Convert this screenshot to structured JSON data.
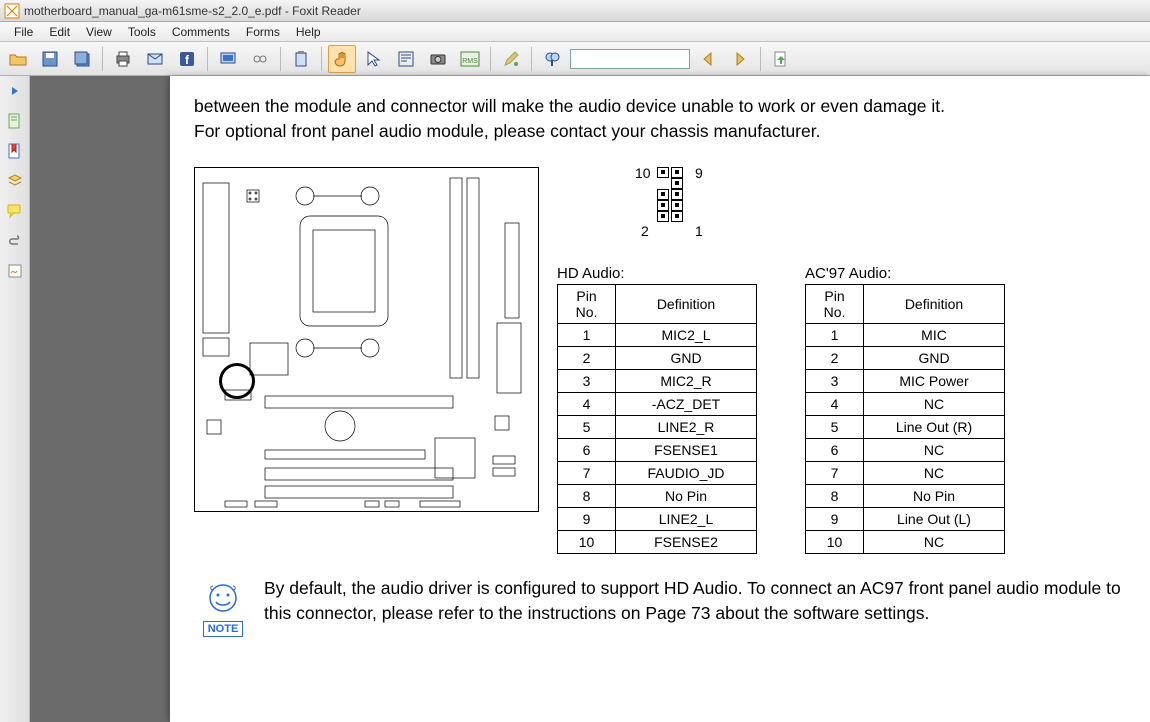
{
  "window": {
    "title": "motherboard_manual_ga-m61sme-s2_2.0_e.pdf - Foxit Reader"
  },
  "menu": {
    "items": [
      "File",
      "Edit",
      "View",
      "Tools",
      "Comments",
      "Forms",
      "Help"
    ]
  },
  "toolbar": {
    "buttons": [
      {
        "name": "open-icon",
        "color": "#e8b24a"
      },
      {
        "name": "save-icon",
        "color": "#5a7fb0"
      },
      {
        "name": "save-multi-icon",
        "color": "#5a7fb0"
      },
      {
        "name": "print-icon",
        "color": "#555"
      },
      {
        "name": "mail-icon",
        "color": "#3a73c7"
      },
      {
        "name": "facebook-icon",
        "color": "#3b5998"
      },
      {
        "name": "monitor-icon",
        "color": "#3a73c7"
      },
      {
        "name": "link-icon",
        "color": "#888"
      },
      {
        "name": "clipboard-icon",
        "color": "#3a73c7"
      },
      {
        "name": "hand-icon",
        "color": "#f29b2e",
        "selected": true
      },
      {
        "name": "select-icon",
        "color": "#3a73c7"
      },
      {
        "name": "text-select-icon",
        "color": "#3a73c7"
      },
      {
        "name": "snapshot-icon",
        "color": "#555"
      },
      {
        "name": "rms-icon",
        "color": "#6a6"
      },
      {
        "name": "pen-icon",
        "color": "#c84"
      },
      {
        "name": "find-icon",
        "color": "#3a73c7"
      }
    ],
    "search_placeholder": "",
    "nav_buttons": [
      {
        "name": "find-prev-icon"
      },
      {
        "name": "find-next-icon"
      },
      {
        "name": "remove-icon"
      }
    ]
  },
  "sidebar": {
    "items": [
      {
        "name": "collapse-icon"
      },
      {
        "name": "pages-panel-icon"
      },
      {
        "name": "bookmarks-panel-icon"
      },
      {
        "name": "layers-panel-icon"
      },
      {
        "name": "comments-panel-icon"
      },
      {
        "name": "attachments-panel-icon"
      },
      {
        "name": "signatures-panel-icon"
      }
    ]
  },
  "document": {
    "intro_text_1": "between the module and connector will make the audio device unable to work or even damage it.",
    "intro_text_2": "For optional front panel audio module, please contact your chassis manufacturer.",
    "pin_labels": {
      "tl": "10",
      "tr": "9",
      "bl": "2",
      "br": "1"
    },
    "pin_header_rows": 5,
    "pin_header_missing_cell": {
      "row": 1,
      "col": 0
    },
    "tables": [
      {
        "title": "HD Audio:",
        "columns": [
          "Pin No.",
          "Definition"
        ],
        "rows": [
          [
            "1",
            "MIC2_L"
          ],
          [
            "2",
            "GND"
          ],
          [
            "3",
            "MIC2_R"
          ],
          [
            "4",
            "-ACZ_DET"
          ],
          [
            "5",
            "LINE2_R"
          ],
          [
            "6",
            "FSENSE1"
          ],
          [
            "7",
            "FAUDIO_JD"
          ],
          [
            "8",
            "No Pin"
          ],
          [
            "9",
            "LINE2_L"
          ],
          [
            "10",
            "FSENSE2"
          ]
        ]
      },
      {
        "title": "AC'97 Audio:",
        "columns": [
          "Pin No.",
          "Definition"
        ],
        "rows": [
          [
            "1",
            "MIC"
          ],
          [
            "2",
            "GND"
          ],
          [
            "3",
            "MIC Power"
          ],
          [
            "4",
            "NC"
          ],
          [
            "5",
            "Line Out (R)"
          ],
          [
            "6",
            "NC"
          ],
          [
            "7",
            "NC"
          ],
          [
            "8",
            "No Pin"
          ],
          [
            "9",
            "Line Out (L)"
          ],
          [
            "10",
            "NC"
          ]
        ]
      }
    ],
    "note_label": "NOTE",
    "note_text": "By default, the audio driver is configured to support HD Audio. To connect an AC97 front panel audio module to this connector, please refer to the instructions on Page 73 about the software settings."
  },
  "style": {
    "page_bg": "#ffffff",
    "doc_gutter_bg": "#6b6b6b",
    "title_font_size": 12,
    "menu_font_size": 12,
    "doc_font_size": 17.5,
    "table_font_size": 14,
    "note_color": "#2a6bd4",
    "table_border_color": "#000000"
  }
}
